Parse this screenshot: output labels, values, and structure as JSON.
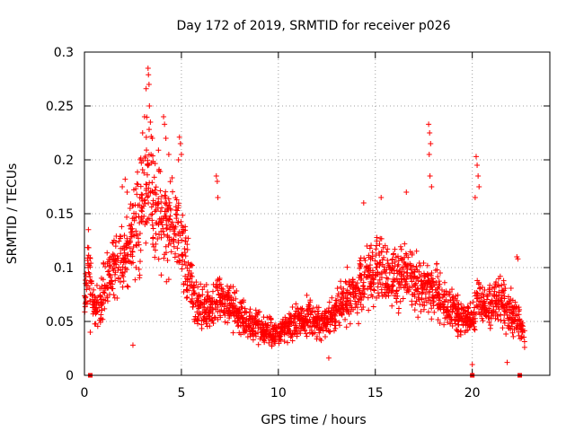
{
  "chart_data": {
    "type": "scatter",
    "title": "Day 172 of 2019, SRMTID for receiver p026",
    "xlabel": "GPS time / hours",
    "ylabel": "SRMTID / TECUs",
    "xlim": [
      0,
      24
    ],
    "ylim": [
      0,
      0.3
    ],
    "xticks": [
      0,
      5,
      10,
      15,
      20
    ],
    "xtick_labels": [
      "0",
      "5",
      "10",
      "15",
      "20"
    ],
    "yticks": [
      0,
      0.05,
      0.1,
      0.15,
      0.2,
      0.25,
      0.3
    ],
    "ytick_labels": [
      "0",
      "0.05",
      "0.1",
      "0.15",
      "0.2",
      "0.25",
      "0.3"
    ],
    "grid": true,
    "marker": "plus",
    "series": [
      {
        "name": "p026",
        "color": "#ff0000",
        "profile": [
          [
            0,
            0.075
          ],
          [
            0.25,
            0.1
          ],
          [
            0.5,
            0.055
          ],
          [
            1.0,
            0.08
          ],
          [
            1.5,
            0.1
          ],
          [
            2.0,
            0.11
          ],
          [
            2.5,
            0.125
          ],
          [
            3.0,
            0.16
          ],
          [
            3.3,
            0.19
          ],
          [
            3.7,
            0.15
          ],
          [
            4.2,
            0.14
          ],
          [
            4.8,
            0.14
          ],
          [
            5.3,
            0.1
          ],
          [
            5.8,
            0.065
          ],
          [
            6.5,
            0.06
          ],
          [
            7.0,
            0.075
          ],
          [
            7.5,
            0.065
          ],
          [
            8.0,
            0.055
          ],
          [
            8.5,
            0.05
          ],
          [
            9.0,
            0.045
          ],
          [
            9.5,
            0.04
          ],
          [
            10.0,
            0.038
          ],
          [
            10.5,
            0.045
          ],
          [
            11.0,
            0.05
          ],
          [
            11.5,
            0.055
          ],
          [
            12.0,
            0.05
          ],
          [
            12.5,
            0.05
          ],
          [
            13.0,
            0.06
          ],
          [
            13.5,
            0.07
          ],
          [
            14.0,
            0.075
          ],
          [
            14.5,
            0.09
          ],
          [
            15.0,
            0.1
          ],
          [
            15.5,
            0.095
          ],
          [
            16.0,
            0.09
          ],
          [
            16.5,
            0.095
          ],
          [
            17.0,
            0.09
          ],
          [
            17.5,
            0.085
          ],
          [
            18.0,
            0.08
          ],
          [
            18.5,
            0.065
          ],
          [
            19.0,
            0.06
          ],
          [
            19.5,
            0.055
          ],
          [
            20.0,
            0.05
          ],
          [
            20.3,
            0.07
          ],
          [
            20.8,
            0.065
          ],
          [
            21.5,
            0.07
          ],
          [
            22.0,
            0.06
          ],
          [
            22.5,
            0.045
          ],
          [
            22.7,
            0.03
          ]
        ],
        "spikes": [
          [
            3.28,
            0.285
          ],
          [
            3.3,
            0.279
          ],
          [
            3.33,
            0.27
          ],
          [
            3.18,
            0.266
          ],
          [
            3.35,
            0.25
          ],
          [
            3.1,
            0.24
          ],
          [
            3.4,
            0.235
          ],
          [
            3.0,
            0.225
          ],
          [
            3.5,
            0.22
          ],
          [
            4.08,
            0.24
          ],
          [
            4.13,
            0.233
          ],
          [
            4.2,
            0.22
          ],
          [
            4.35,
            0.205
          ],
          [
            4.9,
            0.221
          ],
          [
            4.95,
            0.215
          ],
          [
            5.0,
            0.205
          ],
          [
            4.85,
            0.2
          ],
          [
            6.8,
            0.185
          ],
          [
            6.85,
            0.18
          ],
          [
            6.88,
            0.165
          ],
          [
            14.4,
            0.16
          ],
          [
            15.3,
            0.165
          ],
          [
            16.6,
            0.17
          ],
          [
            17.75,
            0.233
          ],
          [
            17.8,
            0.225
          ],
          [
            17.85,
            0.215
          ],
          [
            17.78,
            0.205
          ],
          [
            17.82,
            0.185
          ],
          [
            17.9,
            0.175
          ],
          [
            20.2,
            0.203
          ],
          [
            20.25,
            0.195
          ],
          [
            20.3,
            0.185
          ],
          [
            20.35,
            0.175
          ],
          [
            20.15,
            0.165
          ],
          [
            2.1,
            0.182
          ],
          [
            1.95,
            0.175
          ],
          [
            2.2,
            0.17
          ],
          [
            22.3,
            0.11
          ],
          [
            22.35,
            0.108
          ],
          [
            20.0,
            0.01
          ],
          [
            21.8,
            0.012
          ],
          [
            12.6,
            0.016
          ],
          [
            2.5,
            0.028
          ],
          [
            0.3,
            0.04
          ]
        ],
        "baseline_points": [
          0.3,
          20.0,
          22.45
        ]
      }
    ]
  }
}
